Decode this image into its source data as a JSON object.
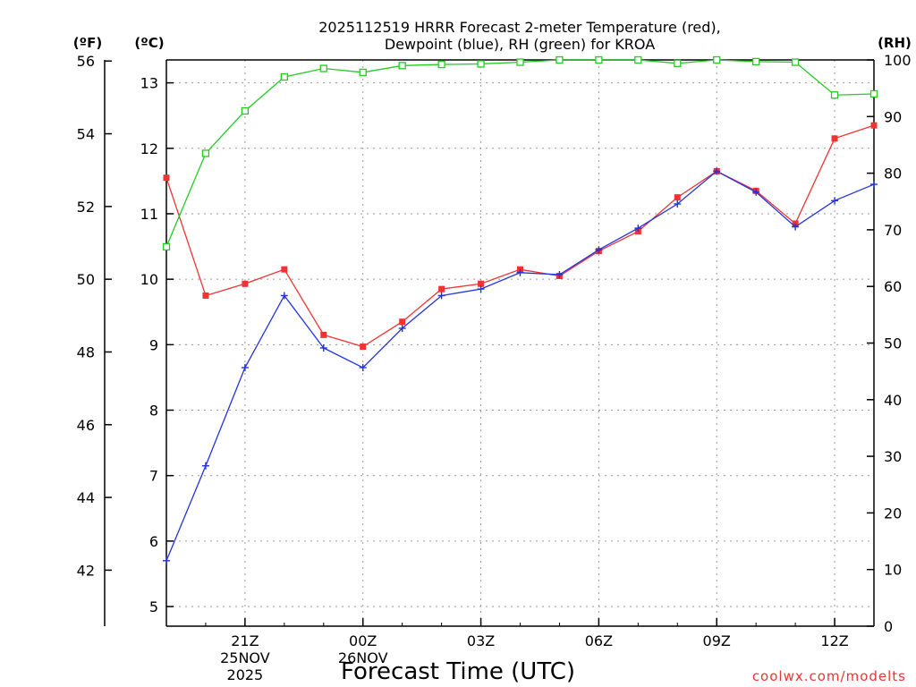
{
  "chart_data": {
    "type": "line",
    "title_line1": "2025112519 HRRR Forecast 2-meter Temperature (red),",
    "title_line2": "Dewpoint (blue), RH (green) for KROA",
    "xlabel": "Forecast Time (UTC)",
    "credit": "coolwx.com/modelts",
    "units_f": "(ºF)",
    "units_c": "(ºC)",
    "units_rh": "(RH)",
    "x_range": [
      19,
      37
    ],
    "x_ticks": [
      {
        "x": 21,
        "label": "21Z",
        "label2": "25NOV",
        "label3": "2025"
      },
      {
        "x": 24,
        "label": "00Z",
        "label2": "26NOV",
        "label3": ""
      },
      {
        "x": 27,
        "label": "03Z",
        "label2": "",
        "label3": ""
      },
      {
        "x": 30,
        "label": "06Z",
        "label2": "",
        "label3": ""
      },
      {
        "x": 33,
        "label": "09Z",
        "label2": "",
        "label3": ""
      },
      {
        "x": 36,
        "label": "12Z",
        "label2": "",
        "label3": ""
      }
    ],
    "celsius_range": [
      4.7,
      13.35
    ],
    "celsius_ticks": [
      5,
      6,
      7,
      8,
      9,
      10,
      11,
      12,
      13
    ],
    "fahrenheit_ticks": [
      42,
      44,
      46,
      48,
      50,
      52,
      54,
      56
    ],
    "rh_range": [
      0,
      100
    ],
    "rh_ticks": [
      0,
      10,
      20,
      30,
      40,
      50,
      60,
      70,
      80,
      90,
      100
    ],
    "x": [
      19,
      20,
      21,
      22,
      23,
      24,
      25,
      26,
      27,
      28,
      29,
      30,
      31,
      32,
      33,
      34,
      35,
      36,
      37
    ],
    "series": [
      {
        "name": "Temperature",
        "axis": "celsius",
        "color": "#ee3333",
        "marker": "filled-square",
        "values": [
          11.55,
          9.75,
          9.93,
          10.15,
          9.15,
          8.97,
          9.35,
          9.85,
          9.93,
          10.15,
          10.05,
          10.43,
          10.73,
          11.25,
          11.65,
          11.35,
          10.85,
          12.15,
          12.35
        ]
      },
      {
        "name": "Dewpoint",
        "axis": "celsius",
        "color": "#2233dd",
        "marker": "plus",
        "values": [
          5.7,
          7.15,
          8.65,
          9.75,
          8.95,
          8.65,
          9.25,
          9.75,
          9.85,
          10.1,
          10.07,
          10.45,
          10.78,
          11.15,
          11.65,
          11.33,
          10.8,
          11.2,
          11.45
        ]
      },
      {
        "name": "RH",
        "axis": "rh",
        "color": "#22cc22",
        "marker": "open-square",
        "values": [
          67,
          83.5,
          91,
          97,
          98.5,
          97.8,
          99,
          99.2,
          99.3,
          99.6,
          100,
          100,
          100,
          99.4,
          100,
          99.7,
          99.6,
          93.8,
          94
        ]
      }
    ],
    "grid": true
  }
}
